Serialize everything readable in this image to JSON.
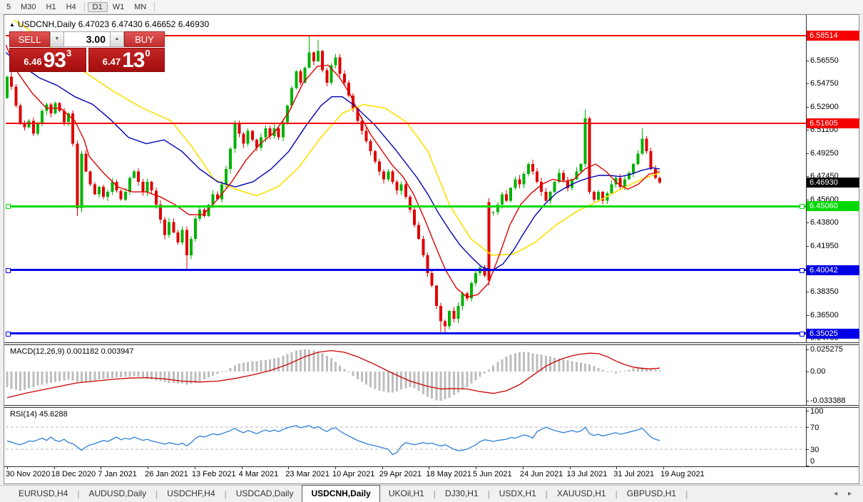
{
  "toolbar": {
    "timeframes": [
      "5",
      "M30",
      "H1",
      "H4",
      "D1",
      "W1",
      "MN"
    ],
    "active": "D1",
    "group_break_after": "H4"
  },
  "icons": {
    "title_marker": "▲",
    "spin_down": "▼",
    "spin_up": "▲",
    "scroll_left": "◂",
    "scroll_right": "▸"
  },
  "chart": {
    "title_symbol": "USDCNH,Daily",
    "title_ohlc": "6.47023 6.47430 6.46652 6.46930",
    "trade_panel": {
      "sell_label": "SELL",
      "buy_label": "BUY",
      "volume": "3.00",
      "sell_small": "6.46",
      "sell_big": "93",
      "sell_sup": "3",
      "buy_small": "6.47",
      "buy_big": "13",
      "buy_sup": "0"
    },
    "colors": {
      "up": "#00b200",
      "down": "#e00000",
      "ma_fast": "#dd0000",
      "ma_mid": "#0000b4",
      "ma_slow": "#ffdf00",
      "macd_hist": "#bdbdbd",
      "macd_signal": "#cc0000",
      "rsi_line": "#2f7ed8"
    },
    "price_axis": {
      "ticks": [
        6.5835,
        6.5655,
        6.5475,
        6.529,
        6.511,
        6.4925,
        6.4745,
        6.456,
        6.438,
        6.4195,
        6.401,
        6.3835,
        6.365,
        6.347
      ],
      "current": {
        "label": "6.46930",
        "value": 6.4693,
        "bg": "#000000"
      }
    },
    "levels": [
      {
        "value": 6.58514,
        "label": "6.58514",
        "color": "#f40000",
        "thick": 2,
        "markers": false
      },
      {
        "value": 6.51605,
        "label": "6.51605",
        "color": "#f40000",
        "thick": 2,
        "markers": false
      },
      {
        "value": 6.4506,
        "label": "6.45060",
        "color": "#00d900",
        "thick": 3,
        "markers": true
      },
      {
        "value": 6.40042,
        "label": "6.40042",
        "color": "#0000e6",
        "thick": 3,
        "markers": true
      },
      {
        "value": 6.35025,
        "label": "6.35025",
        "color": "#0000e6",
        "thick": 3,
        "markers": true
      }
    ],
    "chart_data": {
      "type": "candlestick",
      "symbol": "USDCNH",
      "timeframe": "Daily",
      "first_open": 6.536,
      "wick_seed": 7,
      "closes": [
        6.553,
        6.545,
        6.53,
        6.516,
        6.513,
        6.518,
        6.508,
        6.516,
        6.526,
        6.531,
        6.524,
        6.532,
        6.526,
        6.517,
        6.524,
        6.5,
        6.449,
        6.492,
        6.478,
        6.468,
        6.46,
        6.466,
        6.458,
        6.462,
        6.47,
        6.463,
        6.456,
        6.462,
        6.473,
        6.478,
        6.47,
        6.462,
        6.47,
        6.463,
        6.452,
        6.44,
        6.428,
        6.438,
        6.43,
        6.422,
        6.432,
        6.412,
        6.425,
        6.441,
        6.448,
        6.443,
        6.452,
        6.46,
        6.456,
        6.468,
        6.48,
        6.496,
        6.516,
        6.508,
        6.5,
        6.51,
        6.503,
        6.497,
        6.505,
        6.512,
        6.506,
        6.512,
        6.505,
        6.517,
        6.53,
        6.544,
        6.557,
        6.548,
        6.56,
        6.572,
        6.565,
        6.573,
        6.558,
        6.548,
        6.562,
        6.568,
        6.555,
        6.548,
        6.538,
        6.528,
        6.518,
        6.51,
        6.502,
        6.494,
        6.486,
        6.478,
        6.472,
        6.478,
        6.47,
        6.463,
        6.468,
        6.458,
        6.448,
        6.436,
        6.425,
        6.412,
        6.398,
        6.388,
        6.372,
        6.36,
        6.356,
        6.368,
        6.362,
        6.372,
        6.382,
        6.378,
        6.39,
        6.398,
        6.402,
        6.396,
        6.446,
        6.446,
        6.452,
        6.46,
        6.455,
        6.465,
        6.472,
        6.468,
        6.476,
        6.484,
        6.478,
        6.47,
        6.462,
        6.455,
        6.462,
        6.47,
        6.477,
        6.471,
        6.465,
        6.472,
        6.478,
        6.484,
        6.52,
        6.462,
        6.456,
        6.462,
        6.455,
        6.461,
        6.468,
        6.473,
        6.466,
        6.472,
        6.477,
        6.484,
        6.492,
        6.504,
        6.494,
        6.48,
        6.473,
        6.4693
      ],
      "overrides": {
        "110": [
          6.454,
          6.457,
          6.388,
          6.392
        ]
      },
      "extremes": {
        "16": {
          "l": 6.443
        },
        "41": {
          "l": 6.4005
        },
        "69": {
          "h": 6.5851
        },
        "71": {
          "h": 6.582
        },
        "99": {
          "l": 6.3515
        },
        "100": {
          "l": 6.3495
        },
        "132": {
          "h": 6.527
        },
        "145": {
          "h": 6.512
        }
      },
      "ma_fast_red": [
        [
          8,
          6.578
        ],
        [
          25,
          6.556
        ],
        [
          45,
          6.54
        ],
        [
          65,
          6.528
        ],
        [
          85,
          6.528
        ],
        [
          105,
          6.518
        ],
        [
          118,
          6.503
        ],
        [
          125,
          6.49
        ],
        [
          145,
          6.477
        ],
        [
          165,
          6.466
        ],
        [
          185,
          6.462
        ],
        [
          205,
          6.462
        ],
        [
          225,
          6.458
        ],
        [
          245,
          6.452
        ],
        [
          265,
          6.444
        ],
        [
          285,
          6.444
        ],
        [
          305,
          6.456
        ],
        [
          325,
          6.47
        ],
        [
          345,
          6.487
        ],
        [
          365,
          6.5
        ],
        [
          385,
          6.509
        ],
        [
          405,
          6.525
        ],
        [
          425,
          6.548
        ],
        [
          445,
          6.561
        ],
        [
          460,
          6.562
        ],
        [
          475,
          6.553
        ],
        [
          490,
          6.54
        ],
        [
          505,
          6.522
        ],
        [
          520,
          6.507
        ],
        [
          535,
          6.495
        ],
        [
          550,
          6.483
        ],
        [
          565,
          6.474
        ],
        [
          580,
          6.46
        ],
        [
          595,
          6.441
        ],
        [
          610,
          6.42
        ],
        [
          625,
          6.4
        ],
        [
          640,
          6.386
        ],
        [
          655,
          6.379
        ],
        [
          670,
          6.381
        ],
        [
          685,
          6.39
        ],
        [
          700,
          6.412
        ],
        [
          715,
          6.436
        ],
        [
          730,
          6.452
        ],
        [
          745,
          6.461
        ],
        [
          760,
          6.468
        ],
        [
          775,
          6.472
        ],
        [
          790,
          6.47
        ],
        [
          805,
          6.472
        ],
        [
          820,
          6.48
        ],
        [
          835,
          6.484
        ],
        [
          850,
          6.478
        ],
        [
          865,
          6.469
        ],
        [
          880,
          6.464
        ],
        [
          895,
          6.468
        ],
        [
          910,
          6.476
        ],
        [
          925,
          6.478
        ]
      ],
      "ma_mid_blue": [
        [
          8,
          6.572
        ],
        [
          30,
          6.562
        ],
        [
          55,
          6.552
        ],
        [
          80,
          6.546
        ],
        [
          105,
          6.537
        ],
        [
          130,
          6.531
        ],
        [
          155,
          6.519
        ],
        [
          180,
          6.505
        ],
        [
          205,
          6.5
        ],
        [
          230,
          6.503
        ],
        [
          255,
          6.494
        ],
        [
          280,
          6.48
        ],
        [
          305,
          6.47
        ],
        [
          330,
          6.466
        ],
        [
          355,
          6.47
        ],
        [
          380,
          6.48
        ],
        [
          405,
          6.494
        ],
        [
          430,
          6.515
        ],
        [
          450,
          6.53
        ],
        [
          465,
          6.537
        ],
        [
          480,
          6.537
        ],
        [
          495,
          6.531
        ],
        [
          510,
          6.523
        ],
        [
          525,
          6.515
        ],
        [
          540,
          6.505
        ],
        [
          555,
          6.495
        ],
        [
          570,
          6.484
        ],
        [
          585,
          6.473
        ],
        [
          600,
          6.46
        ],
        [
          615,
          6.445
        ],
        [
          630,
          6.432
        ],
        [
          645,
          6.42
        ],
        [
          660,
          6.411
        ],
        [
          675,
          6.403
        ],
        [
          690,
          6.4
        ],
        [
          705,
          6.405
        ],
        [
          720,
          6.416
        ],
        [
          735,
          6.43
        ],
        [
          750,
          6.443
        ],
        [
          765,
          6.453
        ],
        [
          780,
          6.461
        ],
        [
          795,
          6.466
        ],
        [
          810,
          6.47
        ],
        [
          825,
          6.473
        ],
        [
          840,
          6.475
        ],
        [
          855,
          6.475
        ],
        [
          870,
          6.474
        ],
        [
          885,
          6.476
        ],
        [
          900,
          6.479
        ],
        [
          915,
          6.481
        ],
        [
          925,
          6.48
        ]
      ],
      "ma_slow_yellow": [
        [
          8,
          6.602
        ],
        [
          40,
          6.59
        ],
        [
          80,
          6.572
        ],
        [
          120,
          6.556
        ],
        [
          160,
          6.541
        ],
        [
          200,
          6.528
        ],
        [
          240,
          6.518
        ],
        [
          270,
          6.497
        ],
        [
          300,
          6.472
        ],
        [
          330,
          6.464
        ],
        [
          360,
          6.459
        ],
        [
          390,
          6.466
        ],
        [
          420,
          6.482
        ],
        [
          450,
          6.505
        ],
        [
          480,
          6.524
        ],
        [
          510,
          6.531
        ],
        [
          540,
          6.528
        ],
        [
          570,
          6.517
        ],
        [
          600,
          6.494
        ],
        [
          630,
          6.452
        ],
        [
          660,
          6.425
        ],
        [
          690,
          6.412
        ],
        [
          720,
          6.413
        ],
        [
          750,
          6.422
        ],
        [
          780,
          6.436
        ],
        [
          810,
          6.447
        ],
        [
          840,
          6.455
        ],
        [
          870,
          6.464
        ],
        [
          900,
          6.472
        ],
        [
          925,
          6.477
        ]
      ]
    }
  },
  "macd": {
    "label": "MACD(12,26,9) 0.001182 0.003947",
    "scale": [
      {
        "label": "0.025275",
        "v": 0.025275
      },
      {
        "label": "0.00",
        "v": 0
      },
      {
        "label": "-0.033388",
        "v": -0.033388
      }
    ],
    "hist": [
      -0.018,
      -0.02,
      -0.021,
      -0.022,
      -0.021,
      -0.019,
      -0.018,
      -0.016,
      -0.015,
      -0.014,
      -0.013,
      -0.012,
      -0.011,
      -0.01,
      -0.0095,
      -0.01,
      -0.012,
      -0.013,
      -0.012,
      -0.011,
      -0.01,
      -0.009,
      -0.0085,
      -0.008,
      -0.0075,
      -0.007,
      -0.0065,
      -0.006,
      -0.006,
      -0.0055,
      -0.006,
      -0.007,
      -0.008,
      -0.009,
      -0.01,
      -0.011,
      -0.012,
      -0.013,
      -0.013,
      -0.014,
      -0.014,
      -0.015,
      -0.014,
      -0.013,
      -0.011,
      -0.009,
      -0.007,
      -0.005,
      -0.003,
      -0.001,
      0.001,
      0.004,
      0.007,
      0.009,
      0.01,
      0.011,
      0.012,
      0.012,
      0.013,
      0.013,
      0.014,
      0.015,
      0.016,
      0.018,
      0.02,
      0.022,
      0.024,
      0.025,
      0.0253,
      0.025,
      0.024,
      0.023,
      0.021,
      0.018,
      0.015,
      0.011,
      0.007,
      0.003,
      -0.001,
      -0.005,
      -0.009,
      -0.012,
      -0.015,
      -0.018,
      -0.02,
      -0.022,
      -0.023,
      -0.024,
      -0.024,
      -0.023,
      -0.021,
      -0.019,
      -0.018,
      -0.019,
      -0.022,
      -0.026,
      -0.029,
      -0.031,
      -0.033,
      -0.0334,
      -0.032,
      -0.03,
      -0.027,
      -0.024,
      -0.021,
      -0.018,
      -0.014,
      -0.01,
      -0.006,
      -0.002,
      0.002,
      0.007,
      0.011,
      0.014,
      0.017,
      0.019,
      0.021,
      0.022,
      0.0225,
      0.022,
      0.021,
      0.02,
      0.019,
      0.018,
      0.017,
      0.016,
      0.015,
      0.014,
      0.013,
      0.012,
      0.011,
      0.01,
      0.009,
      0.008,
      0.006,
      0.004,
      0.002,
      0.0,
      -0.001,
      -0.002,
      -0.001,
      0.001,
      0.002,
      0.004,
      0.005,
      0.005,
      0.004,
      0.003,
      0.002,
      0.0012
    ],
    "signal": [
      [
        0,
        -0.03
      ],
      [
        4,
        -0.025
      ],
      [
        8,
        -0.021
      ],
      [
        12,
        -0.017
      ],
      [
        16,
        -0.013
      ],
      [
        20,
        -0.011
      ],
      [
        24,
        -0.009
      ],
      [
        28,
        -0.0075
      ],
      [
        32,
        -0.007
      ],
      [
        36,
        -0.0085
      ],
      [
        40,
        -0.011
      ],
      [
        44,
        -0.012
      ],
      [
        48,
        -0.011
      ],
      [
        52,
        -0.008
      ],
      [
        56,
        -0.004
      ],
      [
        60,
        0.001
      ],
      [
        64,
        0.008
      ],
      [
        68,
        0.017
      ],
      [
        71,
        0.022
      ],
      [
        74,
        0.024
      ],
      [
        77,
        0.022
      ],
      [
        80,
        0.017
      ],
      [
        84,
        0.008
      ],
      [
        88,
        -0.002
      ],
      [
        92,
        -0.011
      ],
      [
        96,
        -0.017
      ],
      [
        99,
        -0.02
      ],
      [
        102,
        -0.0195
      ],
      [
        105,
        -0.02
      ],
      [
        108,
        -0.023
      ],
      [
        111,
        -0.025
      ],
      [
        114,
        -0.022
      ],
      [
        117,
        -0.015
      ],
      [
        119,
        -0.008
      ],
      [
        121,
        -0.001
      ],
      [
        123,
        0.006
      ],
      [
        125,
        0.011
      ],
      [
        127,
        0.015
      ],
      [
        129,
        0.018
      ],
      [
        131,
        0.02
      ],
      [
        133,
        0.021
      ],
      [
        135,
        0.0205
      ],
      [
        137,
        0.017
      ],
      [
        139,
        0.012
      ],
      [
        141,
        0.008
      ],
      [
        143,
        0.005
      ],
      [
        145,
        0.0035
      ],
      [
        147,
        0.003
      ],
      [
        149,
        0.0039
      ]
    ]
  },
  "rsi": {
    "label": "RSI(14) 45.6288",
    "scale": [
      {
        "label": "100",
        "v": 100
      },
      {
        "label": "70",
        "v": 70
      },
      {
        "label": "30",
        "v": 30
      },
      {
        "label": "0",
        "v": 0
      }
    ],
    "levels": [
      70,
      30
    ],
    "values": [
      45,
      43,
      40,
      38,
      41,
      45,
      44,
      47,
      50,
      46,
      52,
      46,
      44,
      48,
      42,
      40,
      34,
      28,
      34,
      38,
      40,
      43,
      46,
      44,
      48,
      52,
      47,
      50,
      48,
      52,
      49,
      46,
      48,
      45,
      43,
      41,
      39,
      42,
      40,
      38,
      41,
      36,
      42,
      50,
      54,
      52,
      55,
      58,
      56,
      58,
      61,
      64,
      68,
      63,
      60,
      64,
      61,
      58,
      62,
      65,
      62,
      65,
      62,
      66,
      69,
      71,
      73,
      69,
      71,
      73,
      68,
      71,
      66,
      62,
      67,
      69,
      63,
      58,
      54,
      50,
      46,
      43,
      40,
      38,
      36,
      34,
      32,
      30,
      20,
      24,
      36,
      42,
      40,
      38,
      40,
      42,
      40,
      41,
      38,
      36,
      38,
      34,
      30,
      27,
      28,
      30,
      34,
      38,
      44,
      47,
      46,
      44,
      46,
      47,
      48,
      51,
      50,
      53,
      56,
      54,
      50,
      62,
      66,
      70,
      67,
      64,
      62,
      60,
      62,
      64,
      61,
      63,
      70,
      58,
      55,
      57,
      54,
      56,
      58,
      60,
      57,
      59,
      61,
      63,
      65,
      68,
      60,
      52,
      48,
      45.6
    ]
  },
  "dates": [
    "30 Nov 2020",
    "18 Dec 2020",
    "7 Jan 2021",
    "26 Jan 2021",
    "13 Feb 2021",
    "4 Mar 2021",
    "23 Mar 2021",
    "10 Apr 2021",
    "29 Apr 2021",
    "18 May 2021",
    "5 Jun 2021",
    "24 Jun 2021",
    "13 Jul 2021",
    "31 Jul 2021",
    "19 Aug 2021"
  ],
  "tabs": {
    "items": [
      "EURUSD,H4",
      "AUDUSD,Daily",
      "USDCHF,H4",
      "USDCAD,Daily",
      "USDCNH,Daily",
      "UKOil,H1",
      "DJ30,H1",
      "USDX,H1",
      "XAUUSD,H1",
      "GBPUSD,H1"
    ],
    "active_index": 4
  }
}
